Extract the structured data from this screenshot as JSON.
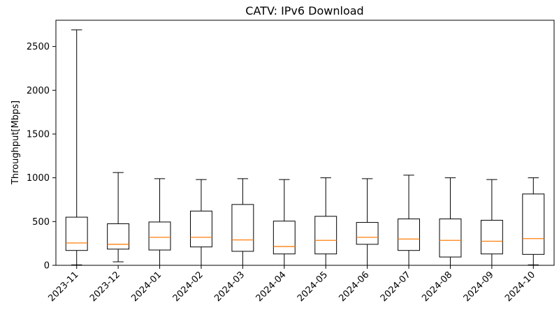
{
  "chart_data": {
    "type": "boxplot",
    "title": "CATV: IPv6 Download",
    "xlabel": "",
    "ylabel": "Throughput[Mbps]",
    "ylim": [
      0,
      2800
    ],
    "yticks": [
      0,
      500,
      1000,
      1500,
      2000,
      2500
    ],
    "grid": false,
    "colors": {
      "box": "#000000",
      "median": "#ff7f0e"
    },
    "categories": [
      "2023-11",
      "2023-12",
      "2024-01",
      "2024-02",
      "2024-03",
      "2024-04",
      "2024-05",
      "2024-06",
      "2024-07",
      "2024-08",
      "2024-09",
      "2024-10"
    ],
    "boxes": [
      {
        "whisker_low": 5,
        "q1": 170,
        "median": 255,
        "q3": 550,
        "whisker_high": 2690
      },
      {
        "whisker_low": 40,
        "q1": 185,
        "median": 240,
        "q3": 475,
        "whisker_high": 1060
      },
      {
        "whisker_low": 0,
        "q1": 175,
        "median": 320,
        "q3": 495,
        "whisker_high": 990
      },
      {
        "whisker_low": 0,
        "q1": 210,
        "median": 320,
        "q3": 620,
        "whisker_high": 980
      },
      {
        "whisker_low": 0,
        "q1": 160,
        "median": 290,
        "q3": 695,
        "whisker_high": 990
      },
      {
        "whisker_low": 0,
        "q1": 130,
        "median": 215,
        "q3": 505,
        "whisker_high": 980
      },
      {
        "whisker_low": 0,
        "q1": 130,
        "median": 285,
        "q3": 560,
        "whisker_high": 1000
      },
      {
        "whisker_low": 0,
        "q1": 240,
        "median": 320,
        "q3": 490,
        "whisker_high": 990
      },
      {
        "whisker_low": 0,
        "q1": 170,
        "median": 300,
        "q3": 530,
        "whisker_high": 1030
      },
      {
        "whisker_low": 0,
        "q1": 95,
        "median": 285,
        "q3": 530,
        "whisker_high": 1000
      },
      {
        "whisker_low": 0,
        "q1": 130,
        "median": 275,
        "q3": 515,
        "whisker_high": 980
      },
      {
        "whisker_low": 5,
        "q1": 125,
        "median": 305,
        "q3": 815,
        "whisker_high": 1000
      }
    ]
  }
}
